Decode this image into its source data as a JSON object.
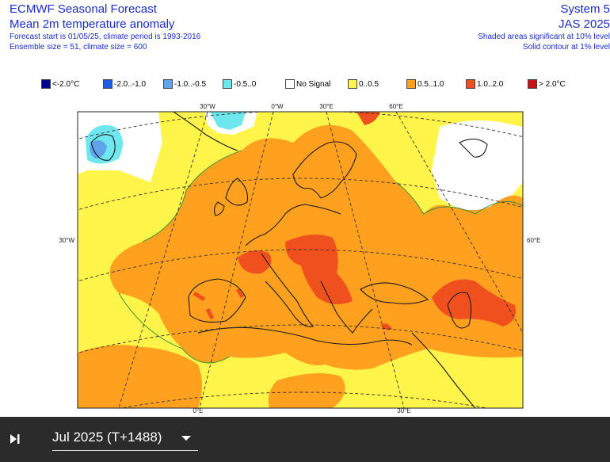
{
  "header": {
    "title": "ECMWF Seasonal Forecast",
    "subtitle": "Mean 2m temperature anomaly",
    "info_line1": "Forecast start is 01/05/25, climate period is 1993-2016",
    "info_line2": "Ensemble size = 51, climate size = 600",
    "system": "System 5",
    "period": "JAS 2025",
    "note1": "Shaded areas significant at 10% level",
    "note2": "Solid contour at 1% level"
  },
  "legend": [
    {
      "label": "<-2.0°C",
      "color": "#000090"
    },
    {
      "label": "-2.0..-1.0",
      "color": "#1e5ce6"
    },
    {
      "label": "-1.0..-0.5",
      "color": "#5fa3ea"
    },
    {
      "label": "-0.5..0",
      "color": "#6ee8ee"
    },
    {
      "label": "No Signal",
      "color": "#ffffff"
    },
    {
      "label": "0..0.5",
      "color": "#fff44a"
    },
    {
      "label": "0.5..1.0",
      "color": "#ffa01e"
    },
    {
      "label": "1.0..2.0",
      "color": "#f0501e"
    },
    {
      "label": "> 2.0°C",
      "color": "#c81414"
    }
  ],
  "map_labels": {
    "lon_30w_top": "30°W",
    "lon_0_top": "0°W",
    "lon_30e_top": "30°E",
    "lon_60e_top": "60°E",
    "lat_30w_left": "30°W",
    "lat_60e_right": "60°E",
    "lon_0_bottom": "0°E",
    "lon_30e_bottom": "30°E"
  },
  "toolbar": {
    "play_icon": "play-step-icon",
    "time_value": "Jul 2025 (T+1488)",
    "dropdown_icon": "chevron-down-icon"
  }
}
